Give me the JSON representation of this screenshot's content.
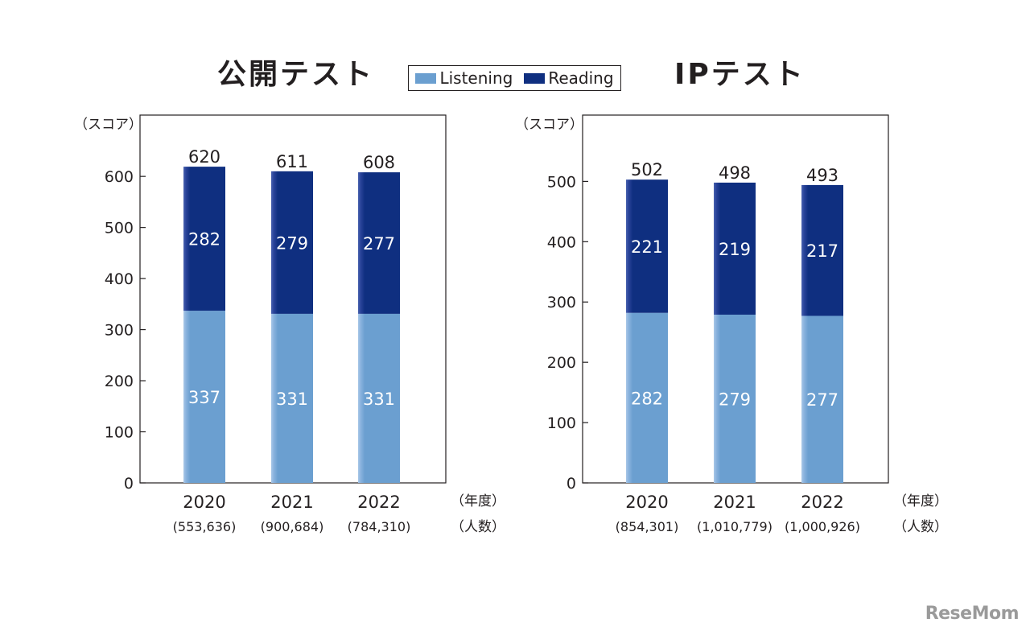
{
  "titles": {
    "left": "公開テスト",
    "right": "IPテスト"
  },
  "legend": [
    {
      "name": "Listening",
      "color": "#6b9fd0"
    },
    {
      "name": "Reading",
      "color": "#0f2f80"
    }
  ],
  "watermark": "ReseMom",
  "chart_data": [
    {
      "type": "bar",
      "stacked": true,
      "title": "公開テスト",
      "ylabel": "（スコア）",
      "xunit_label": "（年度）",
      "count_unit_label": "（人数）",
      "categories": [
        "2020",
        "2021",
        "2022"
      ],
      "counts": [
        "(553,636)",
        "(900,684)",
        "(784,310)"
      ],
      "ylim": [
        0,
        720
      ],
      "yticks": [
        0,
        100,
        200,
        300,
        400,
        500,
        600
      ],
      "series": [
        {
          "name": "Listening",
          "values": [
            337,
            331,
            331
          ]
        },
        {
          "name": "Reading",
          "values": [
            282,
            279,
            277
          ]
        }
      ],
      "totals": [
        620,
        611,
        608
      ]
    },
    {
      "type": "bar",
      "stacked": true,
      "title": "IPテスト",
      "ylabel": "（スコア）",
      "xunit_label": "（年度）",
      "count_unit_label": "（人数）",
      "categories": [
        "2020",
        "2021",
        "2022"
      ],
      "counts": [
        "(854,301)",
        "(1,010,779)",
        "(1,000,926)"
      ],
      "ylim": [
        0,
        610
      ],
      "yticks": [
        0,
        100,
        200,
        300,
        400,
        500
      ],
      "series": [
        {
          "name": "Listening",
          "values": [
            282,
            279,
            277
          ]
        },
        {
          "name": "Reading",
          "values": [
            221,
            219,
            217
          ]
        }
      ],
      "totals": [
        502,
        498,
        493
      ]
    }
  ]
}
